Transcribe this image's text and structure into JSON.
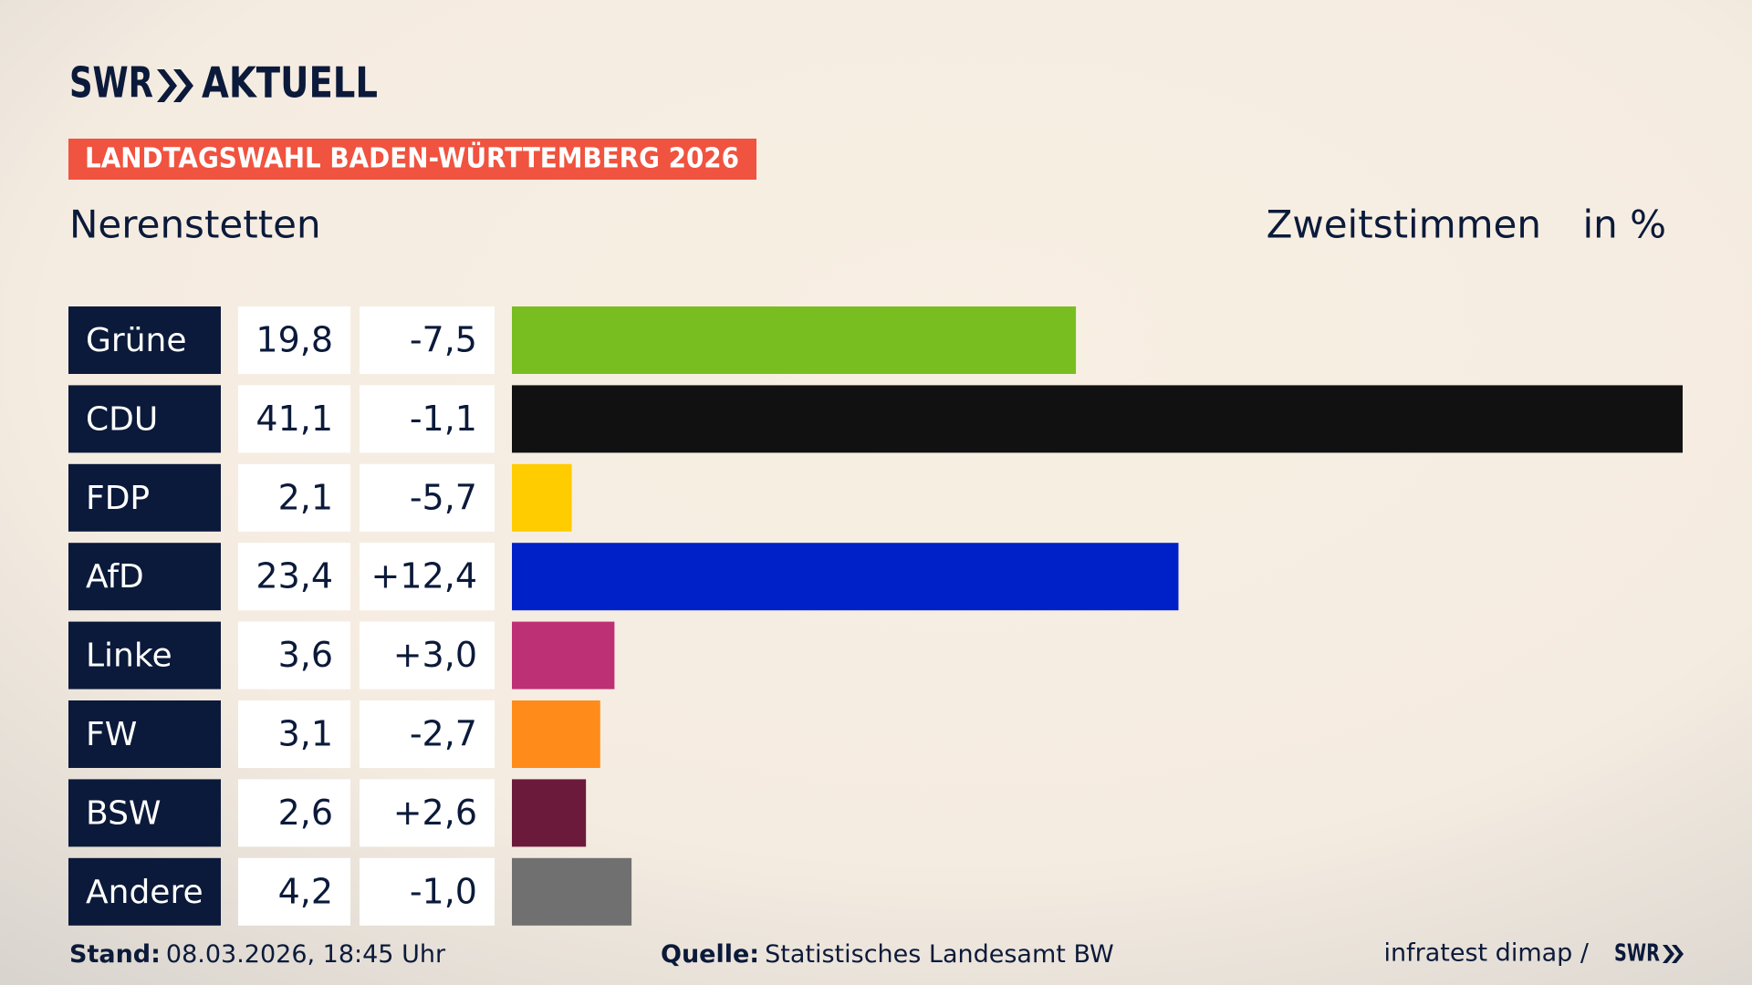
{
  "chart_data": {
    "type": "bar",
    "brand": "SWR",
    "brand_suffix": "AKTUELL",
    "banner": "LANDTAGSWAHL BADEN-WÜRTTEMBERG 2026",
    "title": "Nerenstetten",
    "subtitle": "Zweitstimmen",
    "unit": "in %",
    "categories": [
      "Grüne",
      "CDU",
      "FDP",
      "AfD",
      "Linke",
      "FW",
      "BSW",
      "Andere"
    ],
    "values": [
      19.8,
      41.1,
      2.1,
      23.4,
      3.6,
      3.1,
      2.6,
      4.2
    ],
    "value_labels": [
      "19,8",
      "41,1",
      "2,1",
      "23,4",
      "3,6",
      "3,1",
      "2,6",
      "4,2"
    ],
    "changes": [
      -7.5,
      -1.1,
      -5.7,
      12.4,
      3.0,
      -2.7,
      2.6,
      -1.0
    ],
    "change_labels": [
      "-7,5",
      "-1,1",
      "-5,7",
      "+12,4",
      "+3,0",
      "-2,7",
      "+2,6",
      "-1,0"
    ],
    "colors": [
      "#78be20",
      "#111111",
      "#ffcc00",
      "#0021c8",
      "#be3075",
      "#ff8c1a",
      "#6b1a3c",
      "#707070"
    ],
    "stand_label": "Stand:",
    "stand": "08.03.2026, 18:45 Uhr",
    "source_label": "Quelle:",
    "source": "Statistisches Landesamt BW",
    "credit": "infratest dimap /",
    "credit_logo": "SWR"
  }
}
